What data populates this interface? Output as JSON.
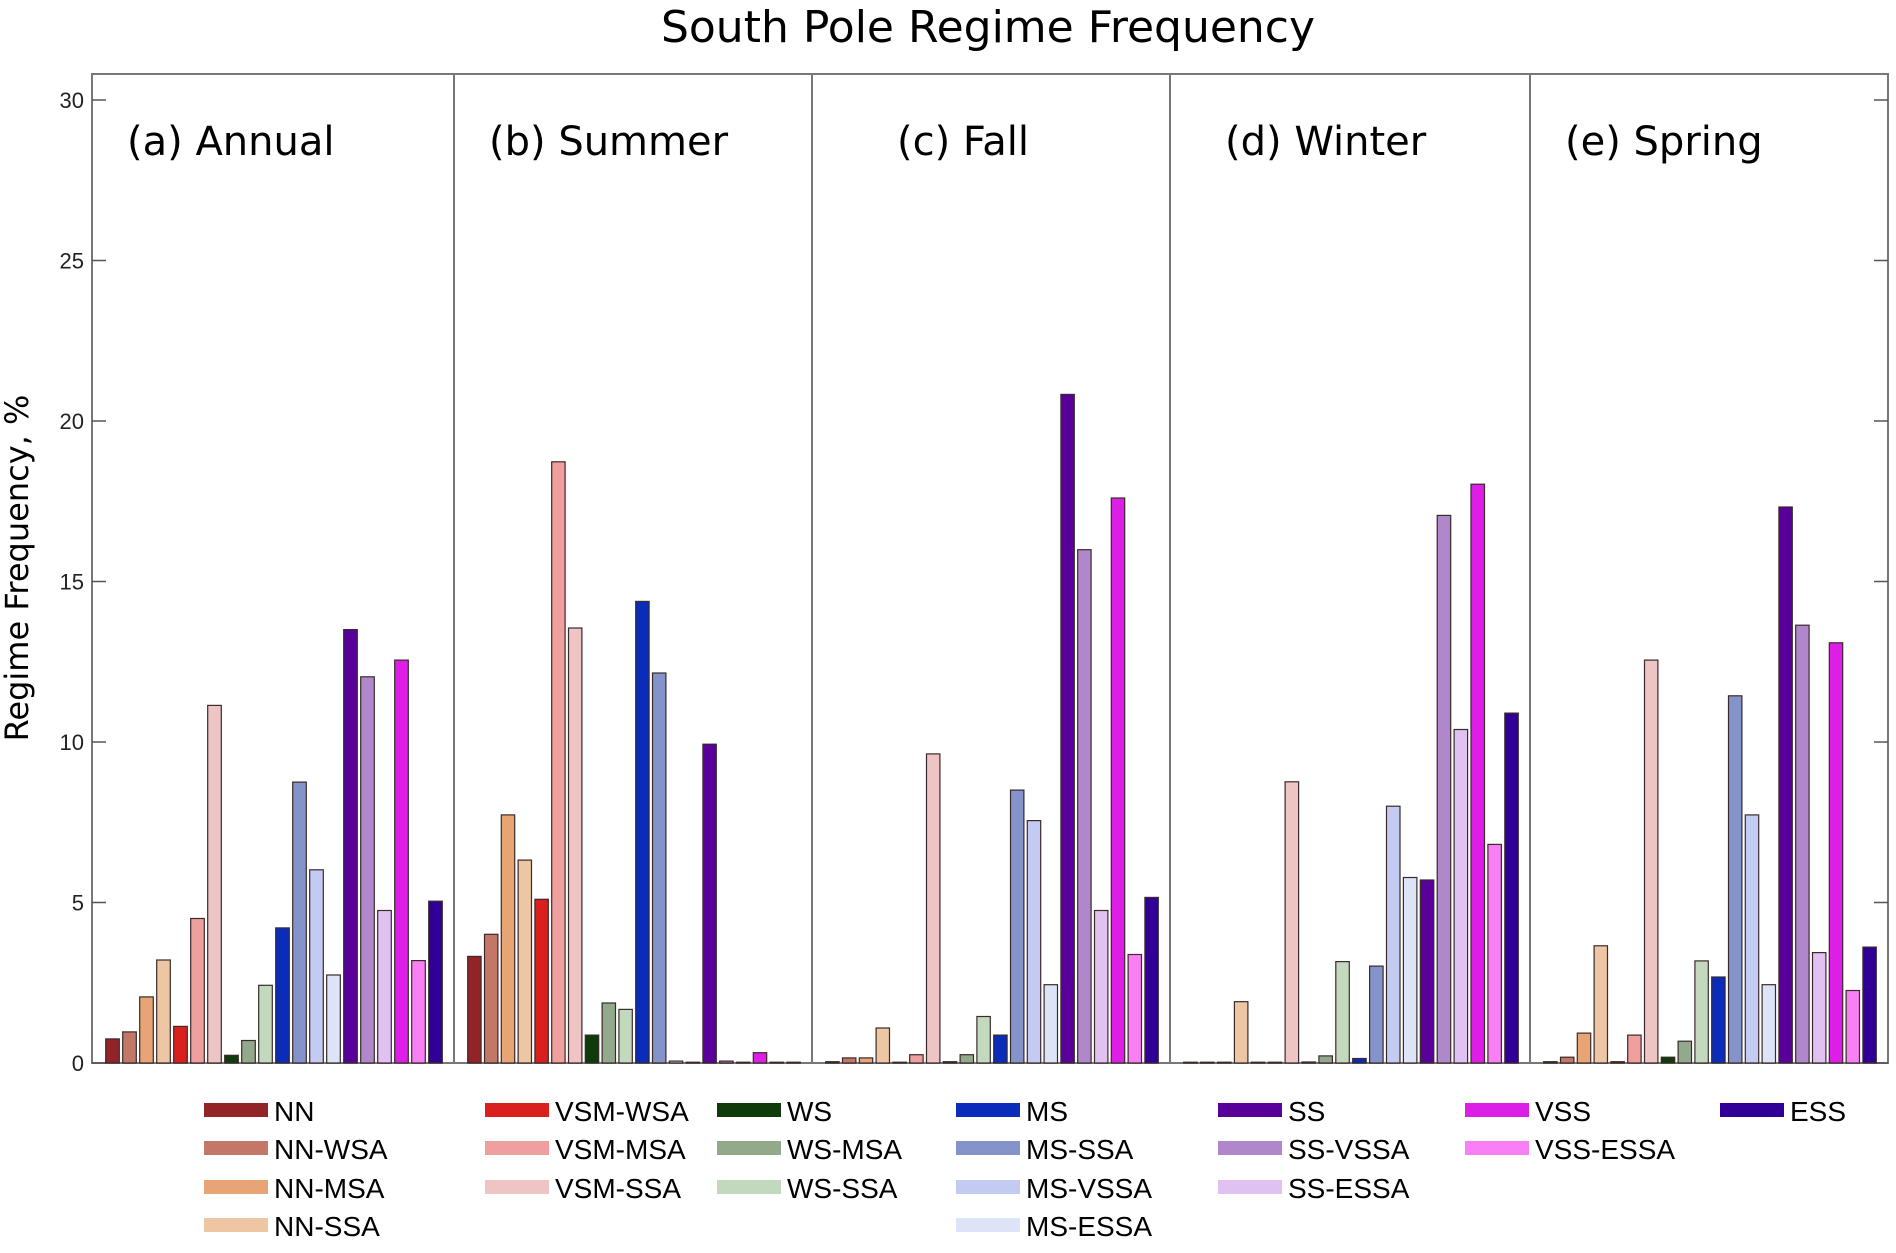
{
  "chart_data": {
    "type": "bar",
    "title": "South Pole Regime Frequency",
    "xlabel": "",
    "ylabel": "Regime Frequency, %",
    "ylim": [
      0,
      30
    ],
    "yticks": [
      0,
      5,
      10,
      15,
      20,
      25,
      30
    ],
    "grid": false,
    "legend_position": "bottom",
    "categories": [
      "NN",
      "NN-WSA",
      "NN-MSA",
      "NN-SSA",
      "VSM-WSA",
      "VSM-MSA",
      "VSM-SSA",
      "WS",
      "WS-MSA",
      "WS-SSA",
      "MS",
      "MS-SSA",
      "MS-VSSA",
      "MS-ESSA",
      "SS",
      "SS-VSSA",
      "SS-ESSA",
      "VSS",
      "VSS-ESSA",
      "ESS"
    ],
    "colors": [
      "#922427",
      "#c37767",
      "#e7a575",
      "#edc6a3",
      "#d9201c",
      "#ee9f9e",
      "#efc4c4",
      "#0f3a0a",
      "#93a98b",
      "#c2d9bd",
      "#0b2cba",
      "#8593cb",
      "#c3cbf2",
      "#dde4f8",
      "#5a009a",
      "#b187cc",
      "#e0c1f2",
      "#dd1ee6",
      "#f97ff4",
      "#300096"
    ],
    "panels": [
      {
        "label": "(a)  Annual",
        "values": [
          0.75,
          0.97,
          2.06,
          3.21,
          1.14,
          4.5,
          11.14,
          0.24,
          0.7,
          2.42,
          4.21,
          8.75,
          6.02,
          2.74,
          13.5,
          12.03,
          4.75,
          12.55,
          3.19,
          5.04
        ]
      },
      {
        "label": "(b)  Summer",
        "values": [
          3.32,
          4.01,
          7.73,
          6.32,
          5.1,
          18.73,
          13.55,
          0.87,
          1.87,
          1.67,
          14.38,
          12.15,
          0.06,
          0.0,
          9.93,
          0.06,
          0.0,
          0.32,
          0.0,
          0.0
        ]
      },
      {
        "label": "(c)  Fall",
        "values": [
          0.04,
          0.16,
          0.16,
          1.09,
          0.0,
          0.26,
          9.63,
          0.04,
          0.26,
          1.45,
          0.87,
          8.5,
          7.55,
          2.44,
          20.83,
          15.99,
          4.75,
          17.6,
          3.38,
          5.16
        ]
      },
      {
        "label": "(d)  Winter",
        "values": [
          0.0,
          0.02,
          0.02,
          1.91,
          0.0,
          0.0,
          8.76,
          0.03,
          0.22,
          3.16,
          0.14,
          3.02,
          8.0,
          5.78,
          5.7,
          17.06,
          10.39,
          18.03,
          6.81,
          10.9
        ]
      },
      {
        "label": "(e)  Spring",
        "values": [
          0.04,
          0.18,
          0.93,
          3.65,
          0.04,
          0.87,
          12.55,
          0.18,
          0.68,
          3.18,
          2.68,
          11.44,
          7.73,
          2.44,
          17.32,
          13.64,
          3.44,
          13.09,
          2.26,
          3.61
        ]
      }
    ],
    "legend": {
      "columns": [
        [
          "NN",
          "NN-WSA",
          "NN-MSA",
          "NN-SSA"
        ],
        [
          "VSM-WSA",
          "VSM-MSA",
          "VSM-SSA"
        ],
        [
          "WS",
          "WS-MSA",
          "WS-SSA"
        ],
        [
          "MS",
          "MS-SSA",
          "MS-VSSA",
          "MS-ESSA"
        ],
        [
          "SS",
          "SS-VSSA",
          "SS-ESSA"
        ],
        [
          "VSS",
          "VSS-ESSA"
        ],
        [
          "ESS"
        ]
      ]
    }
  }
}
